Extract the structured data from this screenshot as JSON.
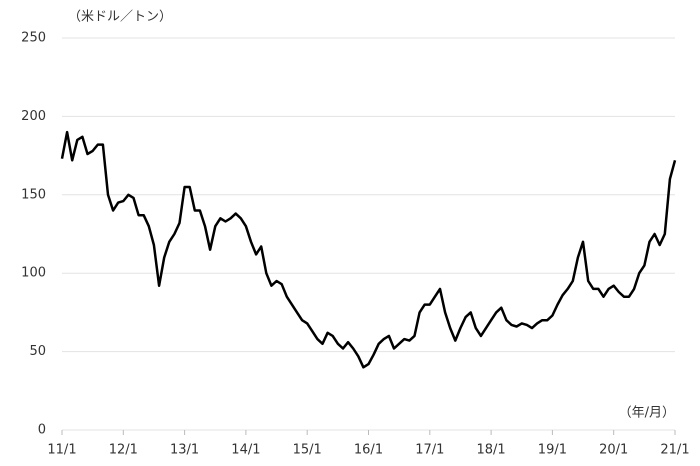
{
  "chart_data": {
    "type": "line",
    "y_label": "（米ドル／トン）",
    "x_label": "（年/月）",
    "categories": [
      "11/1",
      null,
      null,
      null,
      null,
      null,
      null,
      null,
      null,
      null,
      null,
      null,
      "12/1",
      null,
      null,
      null,
      null,
      null,
      null,
      null,
      null,
      null,
      null,
      null,
      "13/1",
      null,
      null,
      null,
      null,
      null,
      null,
      null,
      null,
      null,
      null,
      null,
      "14/1",
      null,
      null,
      null,
      null,
      null,
      null,
      null,
      null,
      null,
      null,
      null,
      "15/1",
      null,
      null,
      null,
      null,
      null,
      null,
      null,
      null,
      null,
      null,
      null,
      "16/1",
      null,
      null,
      null,
      null,
      null,
      null,
      null,
      null,
      null,
      null,
      null,
      "17/1",
      null,
      null,
      null,
      null,
      null,
      null,
      null,
      null,
      null,
      null,
      null,
      "18/1",
      null,
      null,
      null,
      null,
      null,
      null,
      null,
      null,
      null,
      null,
      null,
      "19/1",
      null,
      null,
      null,
      null,
      null,
      null,
      null,
      null,
      null,
      null,
      null,
      "20/1",
      null,
      null,
      null,
      null,
      null,
      null,
      null,
      null,
      null,
      null,
      null,
      "21/1"
    ],
    "values": [
      173,
      190,
      172,
      185,
      187,
      176,
      178,
      182,
      182,
      150,
      140,
      145,
      146,
      150,
      148,
      137,
      137,
      130,
      118,
      92,
      110,
      120,
      125,
      132,
      155,
      155,
      140,
      140,
      130,
      115,
      130,
      135,
      133,
      135,
      138,
      135,
      130,
      120,
      112,
      117,
      100,
      92,
      95,
      93,
      85,
      80,
      75,
      70,
      68,
      63,
      58,
      55,
      62,
      60,
      55,
      52,
      56,
      52,
      47,
      40,
      42,
      48,
      55,
      58,
      60,
      52,
      55,
      58,
      57,
      60,
      75,
      80,
      80,
      85,
      90,
      75,
      65,
      57,
      65,
      72,
      75,
      65,
      60,
      65,
      70,
      75,
      78,
      70,
      67,
      66,
      68,
      67,
      65,
      68,
      70,
      70,
      73,
      80,
      86,
      90,
      95,
      110,
      120,
      95,
      90,
      90,
      85,
      90,
      92,
      88,
      85,
      85,
      90,
      100,
      105,
      120,
      125,
      118,
      125,
      160,
      172
    ],
    "color": "#000000",
    "ylim": [
      0,
      250
    ],
    "yticks": [
      0,
      50,
      100,
      150,
      200,
      250
    ],
    "grid": true
  }
}
